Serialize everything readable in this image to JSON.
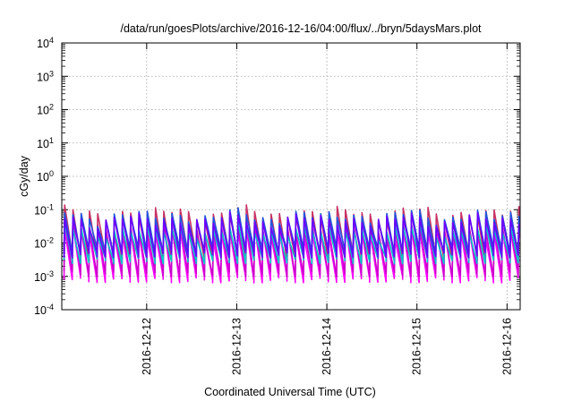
{
  "chart_data": {
    "type": "line",
    "title": "/data/run/goesPlots/archive/2016-12-16/04:00/flux/../bryn/5daysMars.plot",
    "xlabel": "Coordinated Universal Time (UTC)",
    "ylabel": "cGy/day",
    "y_scale": "log",
    "ylim": [
      0.0001,
      10000
    ],
    "xlim": [
      "2016-12-11T01:23",
      "2016-12-16T03:30"
    ],
    "grid": true,
    "legend": "none",
    "y_ticks": [
      {
        "base": "10",
        "exp": "4"
      },
      {
        "base": "10",
        "exp": "3"
      },
      {
        "base": "10",
        "exp": "2"
      },
      {
        "base": "10",
        "exp": "1"
      },
      {
        "base": "10",
        "exp": "0"
      },
      {
        "base": "10",
        "exp": "-1"
      },
      {
        "base": "10",
        "exp": "-2"
      },
      {
        "base": "10",
        "exp": "-3"
      },
      {
        "base": "10",
        "exp": "-4"
      }
    ],
    "x_ticks": [
      {
        "label": "2016-12-12",
        "value": "2016-12-12T00:00"
      },
      {
        "label": "2016-12-13",
        "value": "2016-12-13T00:00"
      },
      {
        "label": "2016-12-14",
        "value": "2016-12-14T00:00"
      },
      {
        "label": "2016-12-15",
        "value": "2016-12-15T00:00"
      },
      {
        "label": "2016-12-16",
        "value": "2016-12-16T00:00"
      }
    ],
    "cycle_period_hours": 2.2,
    "series": [
      {
        "color": "#ff00ff",
        "peak": 0.022,
        "trough": 0.0008,
        "peak_spread": 1.3
      },
      {
        "color": "#cc00cc",
        "peak": 0.03,
        "trough": 0.0012,
        "peak_spread": 1.3
      },
      {
        "color": "#c83264",
        "peak": 0.08,
        "trough": 0.004,
        "peak_spread": 1.3
      },
      {
        "color": "#00c8c8",
        "peak": 0.025,
        "trough": 0.003,
        "peak_spread": 1.3
      },
      {
        "color": "#2255dd",
        "peak": 0.065,
        "trough": 0.006,
        "peak_spread": 1.3
      },
      {
        "color": "#6a00ff",
        "peak": 0.05,
        "trough": 0.0045,
        "peak_spread": 1.3
      }
    ]
  }
}
